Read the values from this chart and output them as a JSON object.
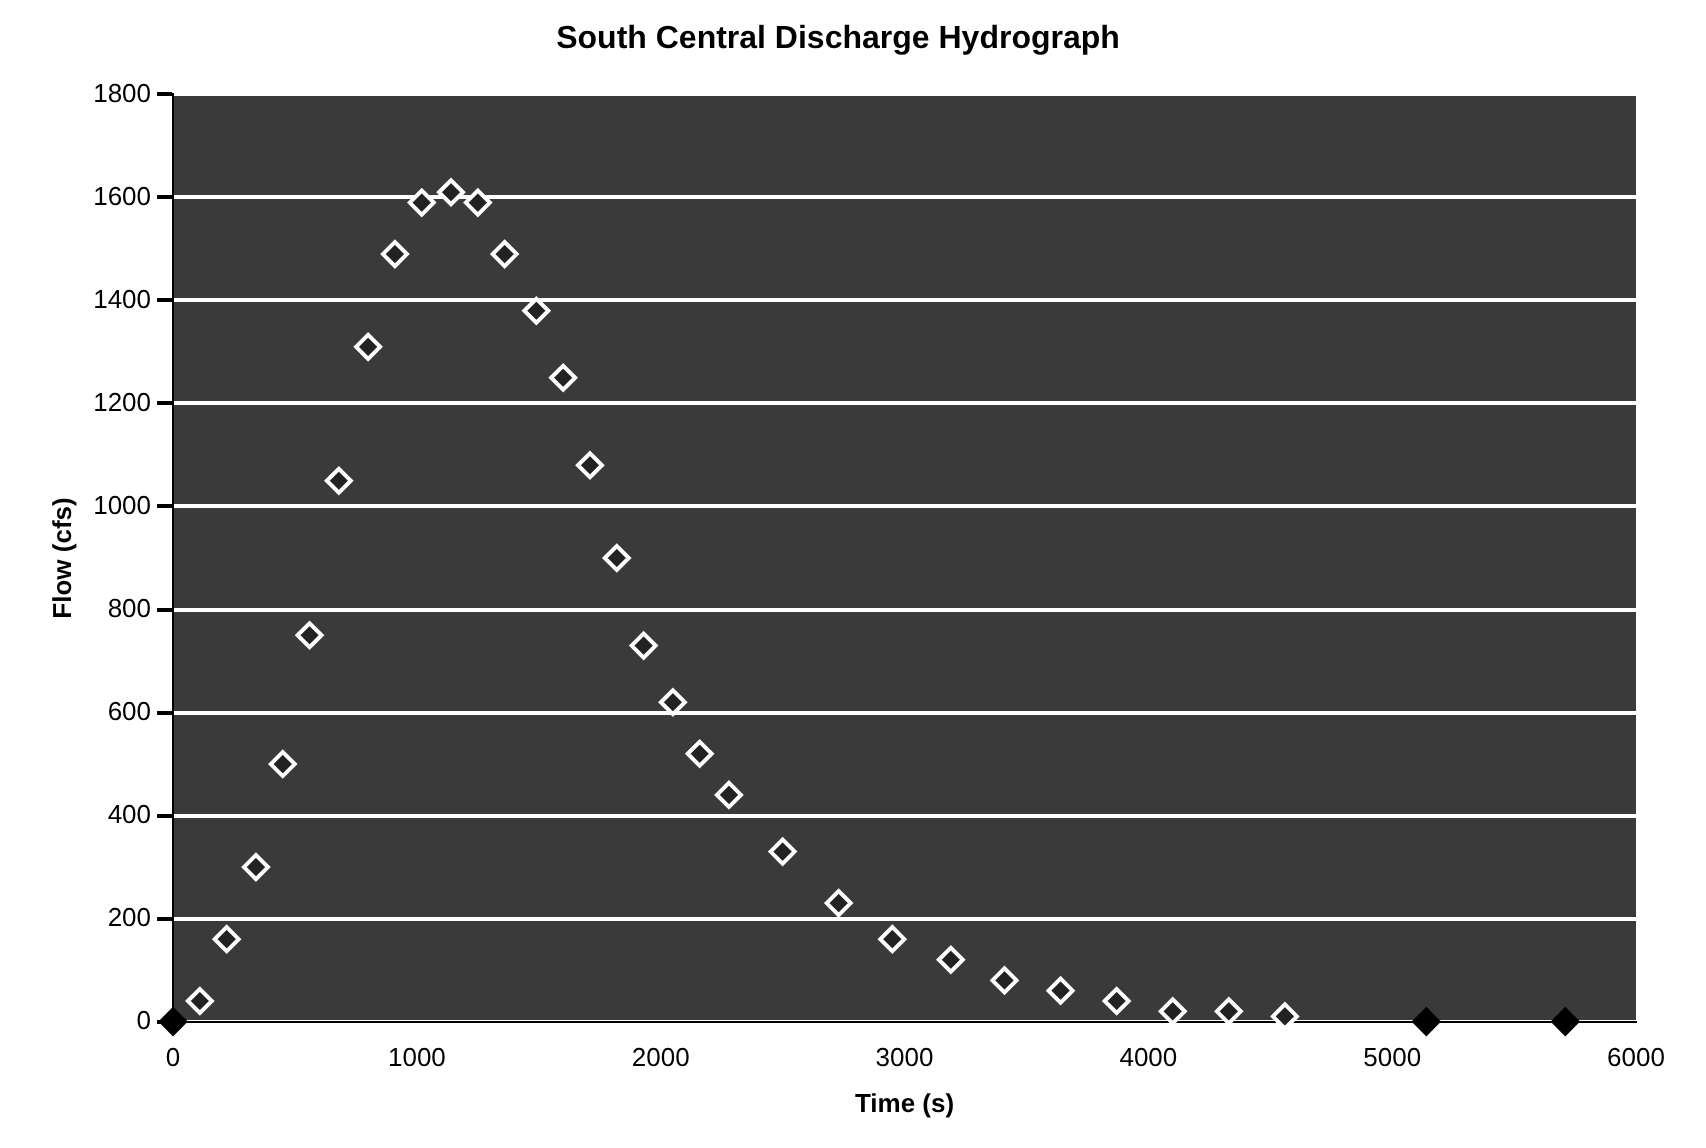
{
  "chart_data": {
    "type": "scatter",
    "title": "South Central Discharge Hydrograph",
    "xlabel": "Time (s)",
    "ylabel": "Flow (cfs)",
    "series": [
      {
        "color": "#ffffff",
        "colors": [
          "#000000",
          "#ffffff",
          "#ffffff",
          "#ffffff",
          "#ffffff",
          "#ffffff",
          "#ffffff",
          "#ffffff",
          "#ffffff",
          "#ffffff",
          "#ffffff",
          "#ffffff",
          "#ffffff",
          "#ffffff",
          "#ffffff",
          "#ffffff",
          "#ffffff",
          "#ffffff",
          "#ffffff",
          "#ffffff",
          "#ffffff",
          "#ffffff",
          "#ffffff",
          "#ffffff",
          "#ffffff",
          "#ffffff",
          "#ffffff",
          "#ffffff",
          "#ffffff",
          "#ffffff",
          "#ffffff",
          "#000000",
          "#000000"
        ],
        "x": [
          0,
          110,
          220,
          340,
          450,
          560,
          680,
          800,
          910,
          1020,
          1140,
          1250,
          1360,
          1490,
          1600,
          1710,
          1820,
          1930,
          2050,
          2160,
          2280,
          2500,
          2730,
          2950,
          3190,
          3410,
          3640,
          3870,
          4100,
          4330,
          4560,
          5140,
          5710
        ],
        "values": [
          0,
          40,
          160,
          300,
          500,
          750,
          1050,
          1310,
          1490,
          1590,
          1610,
          1590,
          1490,
          1380,
          1250,
          1080,
          900,
          730,
          620,
          520,
          440,
          330,
          230,
          160,
          120,
          80,
          60,
          40,
          20,
          20,
          10,
          0,
          0
        ]
      }
    ],
    "xlim": [
      0,
      6000
    ],
    "xticks": [
      0,
      1000,
      2000,
      3000,
      4000,
      5000,
      6000
    ],
    "ylim": [
      0,
      1800
    ],
    "yticks": [
      0,
      200,
      400,
      600,
      800,
      1000,
      1200,
      1400,
      1600,
      1800
    ],
    "grid": "y",
    "marker": "diamond",
    "legend": false
  }
}
